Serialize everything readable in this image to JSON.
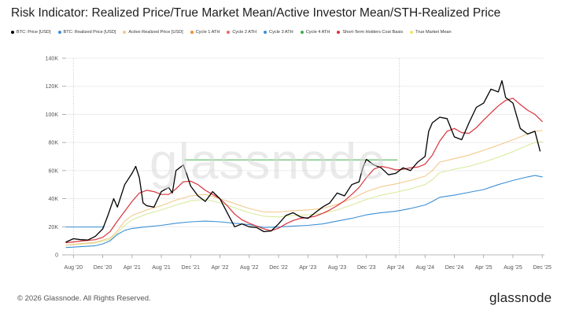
{
  "title": "Risk Indicator: Realized Price/True Market Mean/Active Investor Mean/STH-Realized Price",
  "watermark": "glassnode",
  "footer": "© 2026 Glassnode. All Rights Reserved.",
  "brand": "glassnode",
  "chart_data": {
    "type": "line",
    "title": "Risk Indicator: Realized Price/True Market Mean/Active Investor Mean/STH-Realized Price",
    "xlabel": "",
    "ylabel": "",
    "x_tick_labels": [
      "Aug '20",
      "Dec '20",
      "Apr '21",
      "Aug '21",
      "Dec '21",
      "Apr '22",
      "Aug '22",
      "Dec '22",
      "Apr '23",
      "Aug '23",
      "Dec '23",
      "Apr '24",
      "Aug '24",
      "Dec '24",
      "Apr '25",
      "Aug '25",
      "Dec '25"
    ],
    "y_ticks": [
      0,
      20000,
      40000,
      60000,
      80000,
      100000,
      120000,
      140000
    ],
    "y_tick_labels": [
      "0",
      "20K",
      "40K",
      "60K",
      "80K",
      "100K",
      "120K",
      "140K"
    ],
    "ylim": [
      0,
      140000
    ],
    "xlim_months": [
      -1.0,
      64.3
    ],
    "x_origin": "Aug 2020 = 0 (months)",
    "grid": true,
    "vertical_markers_months": [
      0.0,
      44.5
    ],
    "legend": [
      {
        "name": "BTC: Price [USD]",
        "color": "#000000"
      },
      {
        "name": "BTC: Realized Price [USD]",
        "color": "#3b8fd6"
      },
      {
        "name": "Active Realized Price [USD]",
        "color": "#f3c98b"
      },
      {
        "name": "Cycle 1 ATH",
        "color": "#f28c28"
      },
      {
        "name": "Cycle 2 ATH",
        "color": "#e66b6b"
      },
      {
        "name": "Cycle 3 ATH",
        "color": "#3b8fd6"
      },
      {
        "name": "Cycle 4 ATH",
        "color": "#3fae49"
      },
      {
        "name": "Short-Term Holders Cost Basis",
        "color": "#d9343c"
      },
      {
        "name": "True Market Mean",
        "color": "#f5e36f"
      }
    ],
    "series": [
      {
        "name": "BTC: Price [USD]",
        "color": "#000000",
        "width": 1.3,
        "points": [
          [
            -1,
            9200
          ],
          [
            0,
            11500
          ],
          [
            1,
            10800
          ],
          [
            2,
            10600
          ],
          [
            3,
            13200
          ],
          [
            4,
            18500
          ],
          [
            4.7,
            28000
          ],
          [
            5.5,
            40000
          ],
          [
            6,
            34000
          ],
          [
            7,
            50000
          ],
          [
            8,
            58000
          ],
          [
            8.5,
            63000
          ],
          [
            9,
            55000
          ],
          [
            9.5,
            37000
          ],
          [
            10,
            35000
          ],
          [
            11,
            34000
          ],
          [
            12,
            45000
          ],
          [
            13,
            48000
          ],
          [
            13.5,
            44000
          ],
          [
            14,
            60000
          ],
          [
            15,
            64000
          ],
          [
            15.5,
            57000
          ],
          [
            16,
            49000
          ],
          [
            17,
            42000
          ],
          [
            18,
            38000
          ],
          [
            19,
            45000
          ],
          [
            20,
            40000
          ],
          [
            21,
            30000
          ],
          [
            22,
            20000
          ],
          [
            23,
            22000
          ],
          [
            24,
            20000
          ],
          [
            25,
            19500
          ],
          [
            26,
            16500
          ],
          [
            27,
            17000
          ],
          [
            28,
            22000
          ],
          [
            29,
            28000
          ],
          [
            30,
            30000
          ],
          [
            31,
            27000
          ],
          [
            32,
            26000
          ],
          [
            33,
            30000
          ],
          [
            34,
            34000
          ],
          [
            35,
            37000
          ],
          [
            36,
            44000
          ],
          [
            37,
            42000
          ],
          [
            38,
            50000
          ],
          [
            39,
            52000
          ],
          [
            39.5,
            62000
          ],
          [
            40,
            68000
          ],
          [
            41,
            64000
          ],
          [
            42,
            62000
          ],
          [
            43,
            57000
          ],
          [
            44,
            58000
          ],
          [
            45,
            62000
          ],
          [
            46,
            60000
          ],
          [
            47,
            66000
          ],
          [
            48,
            70000
          ],
          [
            48.5,
            88000
          ],
          [
            49,
            94000
          ],
          [
            50,
            98000
          ],
          [
            51,
            97000
          ],
          [
            52,
            84000
          ],
          [
            53,
            82000
          ],
          [
            54,
            94000
          ],
          [
            55,
            105000
          ],
          [
            56,
            108000
          ],
          [
            57,
            118000
          ],
          [
            58,
            116000
          ],
          [
            58.5,
            124000
          ],
          [
            59,
            112000
          ],
          [
            60,
            108000
          ],
          [
            61,
            90000
          ],
          [
            62,
            86000
          ],
          [
            63,
            88000
          ],
          [
            63.7,
            74000
          ]
        ]
      },
      {
        "name": "BTC: Realized Price [USD]",
        "color": "#3b8fd6",
        "width": 1.1,
        "points": [
          [
            -1,
            5200
          ],
          [
            1,
            5800
          ],
          [
            3,
            6500
          ],
          [
            4,
            7800
          ],
          [
            5,
            10000
          ],
          [
            6,
            14500
          ],
          [
            7,
            17500
          ],
          [
            8,
            18800
          ],
          [
            10,
            20000
          ],
          [
            12,
            21000
          ],
          [
            14,
            22500
          ],
          [
            16,
            23500
          ],
          [
            18,
            24000
          ],
          [
            20,
            23500
          ],
          [
            22,
            22500
          ],
          [
            24,
            21500
          ],
          [
            26,
            19500
          ],
          [
            28,
            19800
          ],
          [
            30,
            20500
          ],
          [
            32,
            21000
          ],
          [
            34,
            22000
          ],
          [
            36,
            24000
          ],
          [
            38,
            26000
          ],
          [
            40,
            28500
          ],
          [
            42,
            30000
          ],
          [
            44,
            31000
          ],
          [
            46,
            33000
          ],
          [
            48,
            35500
          ],
          [
            49,
            38000
          ],
          [
            50,
            41000
          ],
          [
            52,
            42500
          ],
          [
            54,
            44500
          ],
          [
            56,
            46500
          ],
          [
            58,
            50000
          ],
          [
            60,
            53000
          ],
          [
            62,
            55500
          ],
          [
            63,
            56500
          ],
          [
            64,
            55500
          ]
        ]
      },
      {
        "name": "Active Realized Price [USD]",
        "color": "#f3c98b",
        "width": 1.1,
        "points": [
          [
            -1,
            7000
          ],
          [
            1,
            8000
          ],
          [
            3,
            9000
          ],
          [
            5,
            12000
          ],
          [
            6,
            17000
          ],
          [
            7,
            24000
          ],
          [
            8,
            28000
          ],
          [
            10,
            32000
          ],
          [
            12,
            35000
          ],
          [
            14,
            39000
          ],
          [
            16,
            42000
          ],
          [
            18,
            43000
          ],
          [
            20,
            40000
          ],
          [
            22,
            36500
          ],
          [
            24,
            33000
          ],
          [
            26,
            30500
          ],
          [
            28,
            30500
          ],
          [
            30,
            31500
          ],
          [
            32,
            32000
          ],
          [
            34,
            33000
          ],
          [
            36,
            36000
          ],
          [
            38,
            40000
          ],
          [
            40,
            45000
          ],
          [
            42,
            48500
          ],
          [
            44,
            50500
          ],
          [
            46,
            53000
          ],
          [
            48,
            56000
          ],
          [
            49,
            60000
          ],
          [
            50,
            66000
          ],
          [
            52,
            68500
          ],
          [
            54,
            71000
          ],
          [
            56,
            74500
          ],
          [
            58,
            78000
          ],
          [
            60,
            82000
          ],
          [
            62,
            86000
          ],
          [
            63,
            88000
          ],
          [
            64,
            88500
          ]
        ]
      },
      {
        "name": "True Market Mean",
        "color": "#d8eb9e",
        "width": 1.1,
        "points": [
          [
            -1,
            6800
          ],
          [
            1,
            7600
          ],
          [
            3,
            8400
          ],
          [
            5,
            11000
          ],
          [
            6,
            15500
          ],
          [
            7,
            21000
          ],
          [
            8,
            25000
          ],
          [
            10,
            29000
          ],
          [
            12,
            32000
          ],
          [
            14,
            35500
          ],
          [
            16,
            38500
          ],
          [
            18,
            39500
          ],
          [
            20,
            37000
          ],
          [
            22,
            33500
          ],
          [
            24,
            30000
          ],
          [
            26,
            27500
          ],
          [
            28,
            27000
          ],
          [
            30,
            28000
          ],
          [
            32,
            28500
          ],
          [
            34,
            29500
          ],
          [
            36,
            32000
          ],
          [
            38,
            35500
          ],
          [
            40,
            39500
          ],
          [
            42,
            42500
          ],
          [
            44,
            44500
          ],
          [
            46,
            47000
          ],
          [
            48,
            50000
          ],
          [
            49,
            53500
          ],
          [
            50,
            58500
          ],
          [
            52,
            61000
          ],
          [
            54,
            63000
          ],
          [
            56,
            66000
          ],
          [
            58,
            69500
          ],
          [
            60,
            73500
          ],
          [
            62,
            78000
          ],
          [
            63,
            80000
          ],
          [
            64,
            80500
          ]
        ]
      },
      {
        "name": "Short-Term Holders Cost Basis",
        "color": "#d9343c",
        "width": 1.2,
        "points": [
          [
            -1,
            8600
          ],
          [
            1,
            9800
          ],
          [
            3,
            10800
          ],
          [
            4,
            12500
          ],
          [
            5,
            16500
          ],
          [
            6,
            24000
          ],
          [
            7,
            31000
          ],
          [
            8,
            38000
          ],
          [
            9,
            44000
          ],
          [
            10,
            46000
          ],
          [
            11,
            45000
          ],
          [
            12,
            43000
          ],
          [
            13,
            43000
          ],
          [
            14,
            47000
          ],
          [
            15,
            52000
          ],
          [
            16,
            52500
          ],
          [
            17,
            50000
          ],
          [
            18,
            46000
          ],
          [
            19,
            43000
          ],
          [
            20,
            40000
          ],
          [
            21,
            35000
          ],
          [
            22,
            29000
          ],
          [
            23,
            25000
          ],
          [
            24,
            22500
          ],
          [
            25,
            20500
          ],
          [
            26,
            18500
          ],
          [
            27,
            17200
          ],
          [
            28,
            19000
          ],
          [
            29,
            22000
          ],
          [
            30,
            24500
          ],
          [
            31,
            26000
          ],
          [
            32,
            26500
          ],
          [
            33,
            27500
          ],
          [
            34,
            29500
          ],
          [
            35,
            32000
          ],
          [
            36,
            35000
          ],
          [
            37,
            38500
          ],
          [
            38,
            43000
          ],
          [
            39,
            48000
          ],
          [
            40,
            55000
          ],
          [
            41,
            61000
          ],
          [
            42,
            63000
          ],
          [
            43,
            62000
          ],
          [
            44,
            60500
          ],
          [
            45,
            61000
          ],
          [
            46,
            62000
          ],
          [
            47,
            62500
          ],
          [
            48,
            64500
          ],
          [
            49,
            71000
          ],
          [
            50,
            81000
          ],
          [
            51,
            88000
          ],
          [
            52,
            90000
          ],
          [
            53,
            87000
          ],
          [
            54,
            86500
          ],
          [
            55,
            90500
          ],
          [
            56,
            96000
          ],
          [
            57,
            101000
          ],
          [
            58,
            106000
          ],
          [
            59,
            110000
          ],
          [
            60,
            111500
          ],
          [
            61,
            107000
          ],
          [
            62,
            103000
          ],
          [
            63,
            100000
          ],
          [
            64,
            95000
          ]
        ]
      },
      {
        "name": "Cycle 3 ATH",
        "color": "#3b8fd6",
        "width": 1.0,
        "points": [
          [
            -1,
            19800
          ],
          [
            4.2,
            19800
          ]
        ]
      },
      {
        "name": "Cycle 4 ATH",
        "color": "#3fae49",
        "width": 1.0,
        "points": [
          [
            15.2,
            67600
          ],
          [
            44.2,
            67600
          ]
        ]
      }
    ]
  }
}
